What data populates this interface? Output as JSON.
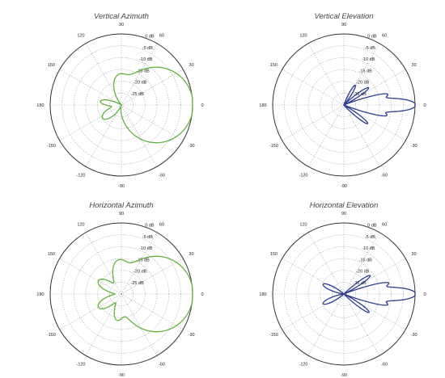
{
  "colors": {
    "green": "#5fb33e",
    "blue": "#2c3d8f"
  },
  "chart_data": [
    {
      "type": "polar",
      "title": "Vertical Azimuth",
      "color": "#5fb33e",
      "angle_labels": [
        "90",
        "60",
        "30",
        "0",
        "-30",
        "-60",
        "-90",
        "-120",
        "-150",
        "180",
        "150",
        "120"
      ],
      "angle_values": [
        90,
        60,
        30,
        0,
        -30,
        -60,
        -90,
        -120,
        -150,
        180,
        150,
        120
      ],
      "radial_labels": [
        "0 dB",
        "-5 dB",
        "-10 dB",
        "-15 dB",
        "-20 dB",
        "-25 dB"
      ],
      "radial_values": [
        0,
        -5,
        -10,
        -15,
        -20,
        -25
      ],
      "rlim": [
        -30,
        0
      ],
      "grid": true,
      "lobes": [
        {
          "az_deg": 0,
          "gain_db": 0,
          "beam_width": 33
        },
        {
          "az_deg": 95,
          "gain_db": -20,
          "beam_width": 16
        },
        {
          "az_deg": -145,
          "gain_db": -23,
          "beam_width": 15
        },
        {
          "az_deg": 170,
          "gain_db": -24,
          "beam_width": 10
        }
      ]
    },
    {
      "type": "polar",
      "title": "Vertical Elevation",
      "color": "#2c3d8f",
      "angle_labels": [
        "90",
        "60",
        "30",
        "0",
        "-30",
        "-60",
        "-90",
        "-120",
        "-150",
        "180",
        "150",
        "120"
      ],
      "angle_values": [
        90,
        60,
        30,
        0,
        -30,
        -60,
        -90,
        -120,
        -150,
        180,
        150,
        120
      ],
      "radial_labels": [
        "0 dB",
        "-5 dB",
        "-10 dB",
        "-15 dB",
        "-20 dB",
        "-25 dB"
      ],
      "radial_values": [
        0,
        -5,
        -10,
        -15,
        -20,
        -25
      ],
      "rlim": [
        -30,
        0
      ],
      "grid": true,
      "lobes": [
        {
          "az_deg": 0,
          "gain_db": 0,
          "beam_width": 5
        },
        {
          "az_deg": 14,
          "gain_db": -12.5,
          "beam_width": 3
        },
        {
          "az_deg": -14,
          "gain_db": -13,
          "beam_width": 3
        },
        {
          "az_deg": 35,
          "gain_db": -19,
          "beam_width": 4
        },
        {
          "az_deg": -38,
          "gain_db": -19,
          "beam_width": 4
        },
        {
          "az_deg": 60,
          "gain_db": -23,
          "beam_width": 5
        }
      ]
    },
    {
      "type": "polar",
      "title": "Horizontal Azimuth",
      "color": "#5fb33e",
      "angle_labels": [
        "90",
        "60",
        "30",
        "0",
        "-30",
        "-60",
        "-90",
        "-120",
        "-150",
        "180",
        "150",
        "120"
      ],
      "angle_values": [
        90,
        60,
        30,
        0,
        -30,
        -60,
        -90,
        -120,
        -150,
        180,
        150,
        120
      ],
      "radial_labels": [
        "0 dB",
        "-5 dB",
        "-10 dB",
        "-15 dB",
        "-20 dB",
        "-25 dB"
      ],
      "radial_values": [
        0,
        -5,
        -10,
        -15,
        -20,
        -25
      ],
      "rlim": [
        -30,
        0
      ],
      "grid": true,
      "lobes": [
        {
          "az_deg": 0,
          "gain_db": 0,
          "beam_width": 33
        },
        {
          "az_deg": 95,
          "gain_db": -18,
          "beam_width": 15
        },
        {
          "az_deg": 150,
          "gain_db": -21,
          "beam_width": 14
        },
        {
          "az_deg": -150,
          "gain_db": -21,
          "beam_width": 14
        },
        {
          "az_deg": -100,
          "gain_db": -22,
          "beam_width": 12
        }
      ]
    },
    {
      "type": "polar",
      "title": "Horizontal Elevation",
      "color": "#2c3d8f",
      "angle_labels": [
        "90",
        "60",
        "30",
        "0",
        "-30",
        "-60",
        "-90",
        "-120",
        "-150",
        "180",
        "150",
        "120"
      ],
      "angle_values": [
        90,
        60,
        30,
        0,
        -30,
        -60,
        -90,
        -120,
        -150,
        180,
        150,
        120
      ],
      "radial_labels": [
        "0 dB",
        "-5 dB",
        "-10 dB",
        "-15 dB",
        "-20 dB",
        "-25 dB"
      ],
      "radial_values": [
        0,
        -5,
        -10,
        -15,
        -20,
        -25
      ],
      "rlim": [
        -30,
        0
      ],
      "grid": true,
      "lobes": [
        {
          "az_deg": 0,
          "gain_db": 0,
          "beam_width": 5
        },
        {
          "az_deg": 14,
          "gain_db": -12,
          "beam_width": 3
        },
        {
          "az_deg": -14,
          "gain_db": -12.5,
          "beam_width": 3
        },
        {
          "az_deg": 35,
          "gain_db": -18,
          "beam_width": 4
        },
        {
          "az_deg": -36,
          "gain_db": -18.5,
          "beam_width": 4
        },
        {
          "az_deg": 155,
          "gain_db": -23,
          "beam_width": 8
        },
        {
          "az_deg": -155,
          "gain_db": -23,
          "beam_width": 8
        }
      ]
    }
  ]
}
